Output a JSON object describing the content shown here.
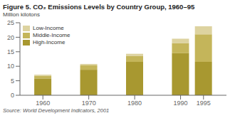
{
  "chart_data": {
    "type": "bar",
    "stacked": true,
    "title": "Figure 5. CO₂ Emissions Levels by Country Group, 1960–95",
    "y_label": "Million kilotons",
    "annotations": [
      "Source: World Development Indicators, 2001"
    ],
    "x": [
      1960,
      1970,
      1980,
      1990,
      1995
    ],
    "series": [
      {
        "name": "High-Income",
        "color": "#a89830",
        "values": [
          5.8,
          8.8,
          11.5,
          14.5,
          11.5
        ]
      },
      {
        "name": "Middle-Income",
        "color": "#c4b55a",
        "values": [
          0.9,
          1.5,
          2.0,
          3.5,
          9.5
        ]
      },
      {
        "name": "Low-Income",
        "color": "#ddd3a0",
        "values": [
          0.4,
          0.5,
          0.8,
          1.5,
          2.8
        ]
      }
    ],
    "xlim": [
      1955,
      2000
    ],
    "xticks": [
      1960,
      1970,
      1980,
      1990,
      1995
    ],
    "ylim": [
      0,
      25
    ],
    "yticks": [
      0,
      5,
      10,
      15,
      20,
      25
    ],
    "grid": false,
    "legend": "upper left"
  }
}
